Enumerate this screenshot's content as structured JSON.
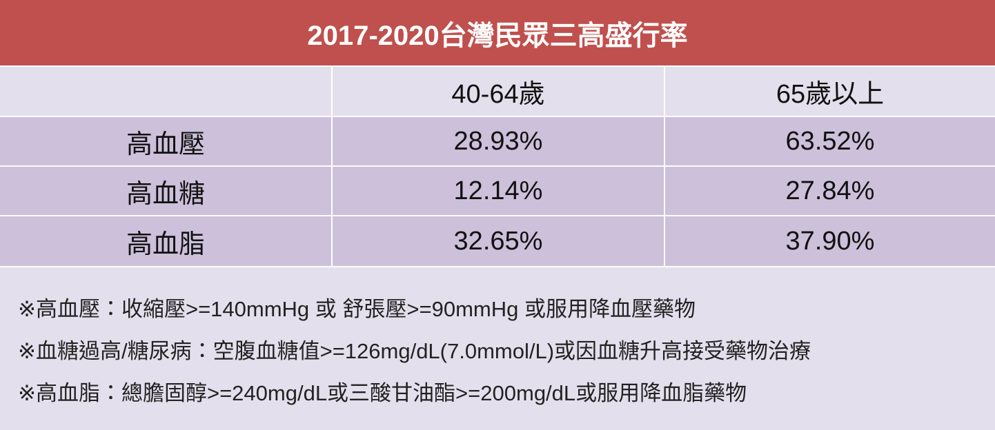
{
  "header": {
    "title": "2017-2020台灣民眾三高盛行率"
  },
  "table": {
    "columns": [
      "40-64歲",
      "65歲以上"
    ],
    "rows": [
      {
        "label": "高血壓",
        "values": [
          "28.93%",
          "63.52%"
        ]
      },
      {
        "label": "高血糖",
        "values": [
          "12.14%",
          "27.84%"
        ]
      },
      {
        "label": "高血脂",
        "values": [
          "32.65%",
          "37.90%"
        ]
      }
    ]
  },
  "notes": [
    "※高血壓：收縮壓>=140mmHg 或 舒張壓>=90mmHg 或服用降血壓藥物",
    "※血糖過高/糖尿病：空腹血糖值>=126mg/dL(7.0mmol/L)或因血糖升高接受藥物治療",
    "※高血脂：總膽固醇>=240mg/dL或三酸甘油酯>=200mg/dL或服用降血脂藥物"
  ]
}
